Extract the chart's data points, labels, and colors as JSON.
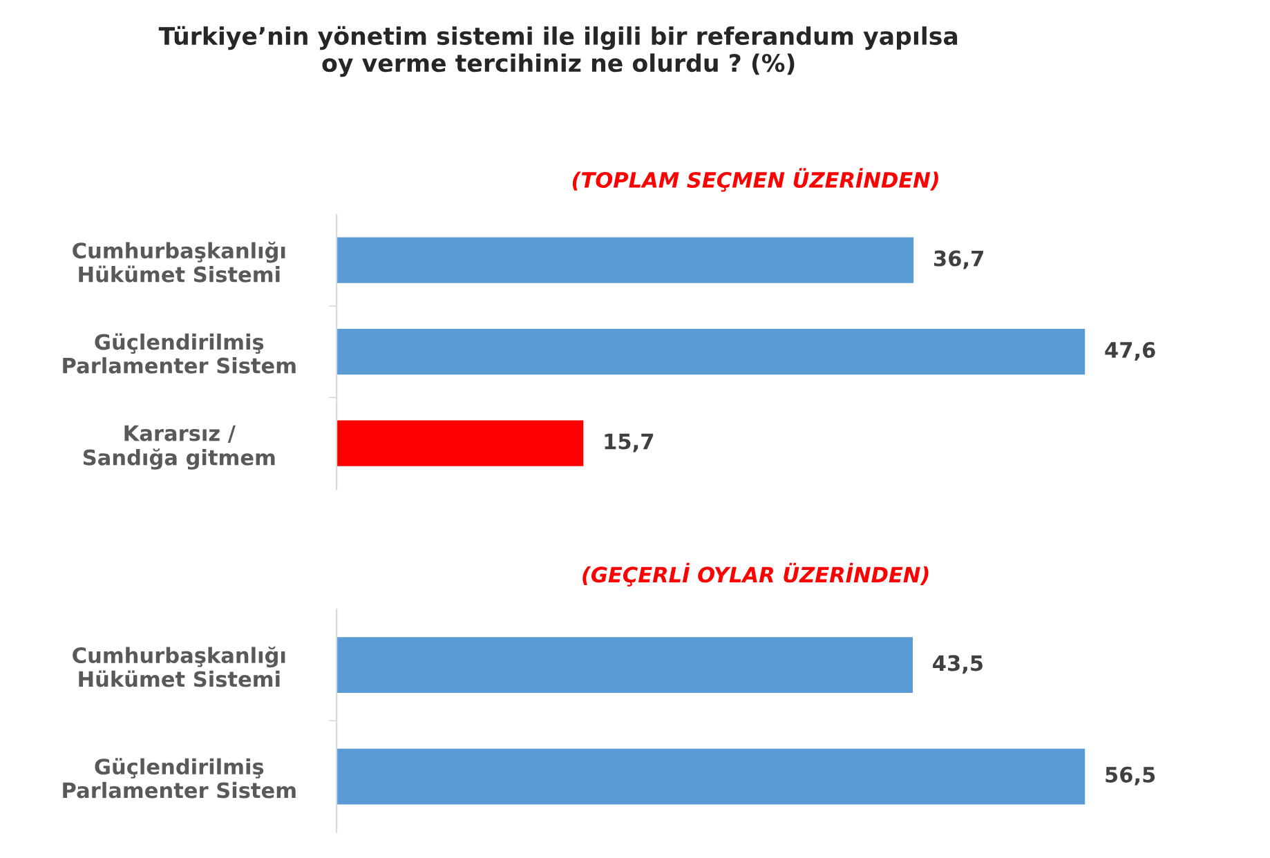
{
  "chart_data": [
    {
      "type": "bar",
      "orientation": "horizontal",
      "title": "Türkiye’nin yönetim sistemi ile ilgili bir referandum yapılsa\noy verme tercihiniz ne olurdu ? (%)",
      "subtitle": "(TOPLAM SEÇMEN ÜZERİNDEN)",
      "categories": [
        "Cumhurbaşkanlığı\nHükümet Sistemi",
        "Güçlendirilmiş\nParlamenter Sistem",
        "Kararsız /\nSandığa gitmem"
      ],
      "values": [
        36.7,
        47.6,
        15.7
      ],
      "colors": [
        "#5b9bd5",
        "#5b9bd5",
        "#ff0000"
      ],
      "value_labels": [
        "36,7",
        "47,6",
        "15,7"
      ],
      "tick_labels": "y",
      "grid": false,
      "legend": false
    },
    {
      "type": "bar",
      "orientation": "horizontal",
      "subtitle": "(GEÇERLİ OYLAR ÜZERİNDEN)",
      "categories": [
        "Cumhurbaşkanlığı\nHükümet Sistemi",
        "Güçlendirilmiş\nParlamenter Sistem"
      ],
      "values": [
        43.5,
        56.5
      ],
      "colors": [
        "#5b9bd5",
        "#5b9bd5"
      ],
      "value_labels": [
        "43,5",
        "56,5"
      ],
      "tick_labels": "y",
      "grid": false,
      "legend": false
    }
  ]
}
